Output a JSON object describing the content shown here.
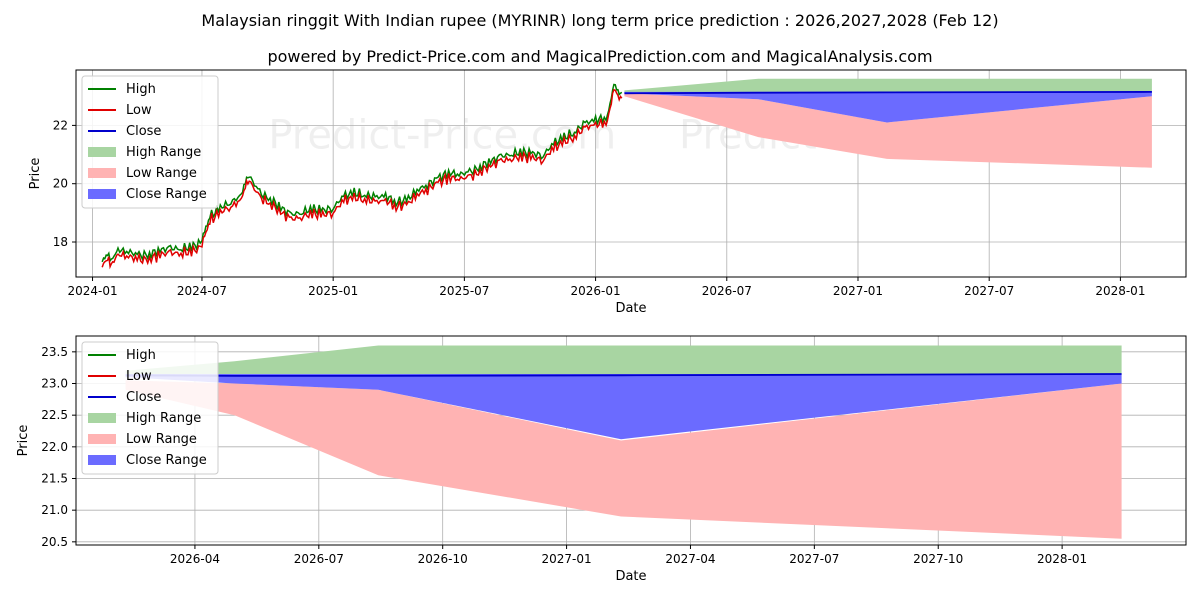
{
  "title": "Malaysian ringgit With Indian rupee (MYRINR) long term price prediction : 2026,2027,2028 (Feb 12)",
  "subtitle": "powered by Predict-Price.com and MagicalPrediction.com and MagicalAnalysis.com",
  "watermark": "Predict-Price.com",
  "colors": {
    "high": "#008000",
    "low": "#e00000",
    "close": "#0000cc",
    "high_range": "#a8d5a2",
    "low_range": "#ffb3b3",
    "close_range": "#6b6bff",
    "grid": "#b0b0b0"
  },
  "chart_data": [
    {
      "type": "line",
      "name": "history-and-forecast",
      "xlabel": "Date",
      "ylabel": "Price",
      "xlim": [
        2024.02,
        2028.25
      ],
      "ylim": [
        16.8,
        23.9
      ],
      "xticks": [
        {
          "v": 2024.083,
          "label": "2024-01"
        },
        {
          "v": 2024.5,
          "label": "2024-07"
        },
        {
          "v": 2025.0,
          "label": "2025-01"
        },
        {
          "v": 2025.5,
          "label": "2025-07"
        },
        {
          "v": 2026.0,
          "label": "2026-01"
        },
        {
          "v": 2026.5,
          "label": "2026-07"
        },
        {
          "v": 2027.0,
          "label": "2027-01"
        },
        {
          "v": 2027.5,
          "label": "2027-07"
        },
        {
          "v": 2028.0,
          "label": "2028-01"
        }
      ],
      "yticks": [
        18,
        20,
        22
      ],
      "legend": [
        "High",
        "Low",
        "Close",
        "High Range",
        "Low Range",
        "Close Range"
      ],
      "history_close": [
        [
          2024.12,
          17.35
        ],
        [
          2024.15,
          17.4
        ],
        [
          2024.18,
          17.65
        ],
        [
          2024.22,
          17.6
        ],
        [
          2024.26,
          17.45
        ],
        [
          2024.3,
          17.5
        ],
        [
          2024.34,
          17.65
        ],
        [
          2024.38,
          17.7
        ],
        [
          2024.42,
          17.7
        ],
        [
          2024.46,
          17.75
        ],
        [
          2024.5,
          17.9
        ],
        [
          2024.53,
          18.8
        ],
        [
          2024.57,
          19.1
        ],
        [
          2024.61,
          19.3
        ],
        [
          2024.65,
          19.5
        ],
        [
          2024.68,
          20.2
        ],
        [
          2024.72,
          19.6
        ],
        [
          2024.76,
          19.4
        ],
        [
          2024.8,
          19.1
        ],
        [
          2024.84,
          18.85
        ],
        [
          2024.88,
          18.95
        ],
        [
          2024.92,
          19.05
        ],
        [
          2024.96,
          19.0
        ],
        [
          2025.0,
          19.1
        ],
        [
          2025.04,
          19.5
        ],
        [
          2025.08,
          19.6
        ],
        [
          2025.12,
          19.55
        ],
        [
          2025.16,
          19.45
        ],
        [
          2025.2,
          19.5
        ],
        [
          2025.24,
          19.3
        ],
        [
          2025.28,
          19.35
        ],
        [
          2025.32,
          19.7
        ],
        [
          2025.36,
          19.9
        ],
        [
          2025.4,
          20.1
        ],
        [
          2025.44,
          20.3
        ],
        [
          2025.48,
          20.25
        ],
        [
          2025.52,
          20.3
        ],
        [
          2025.56,
          20.5
        ],
        [
          2025.6,
          20.7
        ],
        [
          2025.64,
          20.85
        ],
        [
          2025.68,
          20.95
        ],
        [
          2025.72,
          21.0
        ],
        [
          2025.76,
          20.95
        ],
        [
          2025.8,
          20.9
        ],
        [
          2025.84,
          21.3
        ],
        [
          2025.88,
          21.5
        ],
        [
          2025.92,
          21.7
        ],
        [
          2025.96,
          22.0
        ],
        [
          2026.0,
          22.1
        ],
        [
          2026.04,
          22.2
        ],
        [
          2026.07,
          23.3
        ],
        [
          2026.1,
          23.05
        ]
      ],
      "forecast_x": [
        2026.11,
        2026.62,
        2027.11,
        2028.12
      ],
      "high_range_upper": [
        23.2,
        23.6,
        23.6,
        23.6
      ],
      "high_range_lower": [
        23.1,
        23.15,
        23.15,
        23.15
      ],
      "low_range_upper": [
        23.1,
        22.9,
        22.1,
        23.0
      ],
      "low_range_lower": [
        23.0,
        21.6,
        20.85,
        20.55
      ],
      "close_range_upper": [
        23.15,
        23.15,
        23.15,
        23.15
      ],
      "close_range_lower": [
        23.1,
        22.9,
        22.1,
        23.0
      ],
      "forecast_close": [
        23.1,
        23.12,
        23.13,
        23.15
      ]
    },
    {
      "type": "area",
      "name": "forecast-zoom",
      "xlabel": "Date",
      "ylabel": "Price",
      "xlim": [
        2026.01,
        2028.25
      ],
      "ylim": [
        20.45,
        23.75
      ],
      "xticks": [
        {
          "v": 2026.25,
          "label": "2026-04"
        },
        {
          "v": 2026.5,
          "label": "2026-07"
        },
        {
          "v": 2026.75,
          "label": "2026-10"
        },
        {
          "v": 2027.0,
          "label": "2027-01"
        },
        {
          "v": 2027.25,
          "label": "2027-04"
        },
        {
          "v": 2027.5,
          "label": "2027-07"
        },
        {
          "v": 2027.75,
          "label": "2027-10"
        },
        {
          "v": 2028.0,
          "label": "2028-01"
        }
      ],
      "yticks": [
        20.5,
        21.0,
        21.5,
        22.0,
        22.5,
        23.0,
        23.5
      ],
      "legend": [
        "High",
        "Low",
        "Close",
        "High Range",
        "Low Range",
        "Close Range"
      ],
      "forecast_x": [
        2026.11,
        2026.33,
        2026.62,
        2027.11,
        2028.12
      ],
      "high_range_upper": [
        23.2,
        23.35,
        23.6,
        23.6,
        23.6
      ],
      "high_range_lower": [
        23.15,
        23.15,
        23.15,
        23.15,
        23.15
      ],
      "low_range_upper": [
        23.05,
        23.0,
        22.9,
        22.1,
        23.0
      ],
      "low_range_lower": [
        22.9,
        22.5,
        21.55,
        20.9,
        20.55
      ],
      "close_range_upper": [
        23.15,
        23.15,
        23.15,
        23.15,
        23.15
      ],
      "close_range_lower": [
        23.1,
        23.0,
        22.9,
        22.12,
        23.0
      ],
      "forecast_close": [
        23.13,
        23.12,
        23.12,
        23.13,
        23.15
      ]
    }
  ]
}
